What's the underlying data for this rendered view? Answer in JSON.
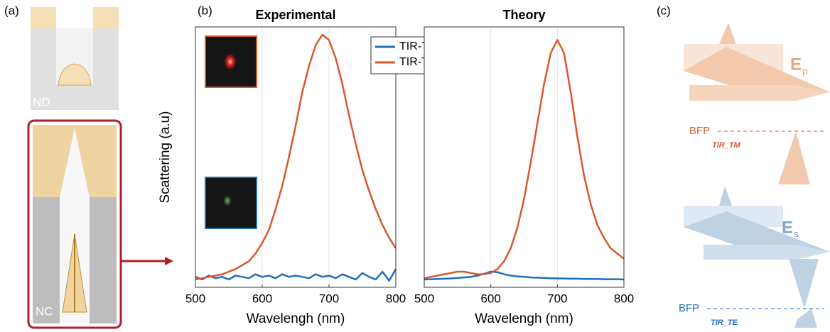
{
  "panel_a": {
    "label": "(a)",
    "top_label": "ND",
    "bottom_label": "NC"
  },
  "panel_b": {
    "label": "(b)"
  },
  "panel_c": {
    "label": "(c)",
    "top": {
      "field": "E",
      "sub": "p",
      "plane": "BFP",
      "mode": "TIR_TM"
    },
    "bottom": {
      "field": "E",
      "sub": "s",
      "plane": "BFP",
      "mode": "TIR_TE"
    }
  },
  "chart_data": [
    {
      "type": "line",
      "title": "Experimental",
      "x_label": "Wavelengh (nm)",
      "y_label": "Scattering (a.u)",
      "x": [
        500,
        510,
        520,
        530,
        540,
        550,
        560,
        570,
        580,
        590,
        600,
        610,
        620,
        630,
        640,
        650,
        660,
        670,
        680,
        690,
        700,
        710,
        720,
        730,
        740,
        750,
        760,
        770,
        780,
        790,
        800
      ],
      "series": [
        {
          "name": "TIR-TE",
          "color": "#1f6fb8",
          "values": [
            0.04,
            0.03,
            0.045,
            0.035,
            0.04,
            0.03,
            0.045,
            0.04,
            0.035,
            0.05,
            0.04,
            0.045,
            0.035,
            0.05,
            0.04,
            0.045,
            0.04,
            0.035,
            0.05,
            0.04,
            0.045,
            0.035,
            0.05,
            0.04,
            0.03,
            0.055,
            0.04,
            0.03,
            0.06,
            0.025,
            0.07
          ]
        },
        {
          "name": "TIR-TM",
          "color": "#d9582b",
          "values": [
            0.03,
            0.035,
            0.04,
            0.045,
            0.05,
            0.06,
            0.07,
            0.085,
            0.1,
            0.13,
            0.17,
            0.22,
            0.3,
            0.39,
            0.5,
            0.62,
            0.75,
            0.85,
            0.93,
            0.97,
            0.95,
            0.88,
            0.78,
            0.66,
            0.55,
            0.45,
            0.37,
            0.3,
            0.24,
            0.19,
            0.15
          ]
        }
      ],
      "xlim": [
        500,
        800
      ],
      "xticks": [
        500,
        600,
        700,
        800
      ],
      "ylim": [
        0,
        1
      ],
      "grid": true,
      "legend": "upper right"
    },
    {
      "type": "line",
      "title": "Theory",
      "x_label": "Wavelengh (nm)",
      "x": [
        500,
        510,
        520,
        530,
        540,
        550,
        560,
        570,
        580,
        590,
        600,
        610,
        620,
        630,
        640,
        650,
        660,
        670,
        680,
        690,
        700,
        710,
        720,
        730,
        740,
        750,
        760,
        770,
        780,
        790,
        800
      ],
      "series": [
        {
          "color": "#1f6fb8",
          "values": [
            0.03,
            0.031,
            0.032,
            0.033,
            0.034,
            0.036,
            0.038,
            0.04,
            0.045,
            0.052,
            0.06,
            0.058,
            0.05,
            0.045,
            0.042,
            0.04,
            0.038,
            0.037,
            0.036,
            0.035,
            0.034,
            0.034,
            0.033,
            0.033,
            0.032,
            0.032,
            0.032,
            0.031,
            0.031,
            0.031,
            0.03
          ]
        },
        {
          "color": "#d9582b",
          "values": [
            0.035,
            0.04,
            0.045,
            0.05,
            0.055,
            0.06,
            0.06,
            0.055,
            0.05,
            0.05,
            0.055,
            0.07,
            0.1,
            0.15,
            0.23,
            0.34,
            0.48,
            0.63,
            0.78,
            0.9,
            0.95,
            0.9,
            0.75,
            0.58,
            0.43,
            0.32,
            0.24,
            0.19,
            0.15,
            0.13,
            0.11
          ]
        }
      ],
      "xlim": [
        500,
        800
      ],
      "xticks": [
        500,
        600,
        700,
        800
      ],
      "ylim": [
        0,
        1
      ],
      "grid": true
    }
  ]
}
